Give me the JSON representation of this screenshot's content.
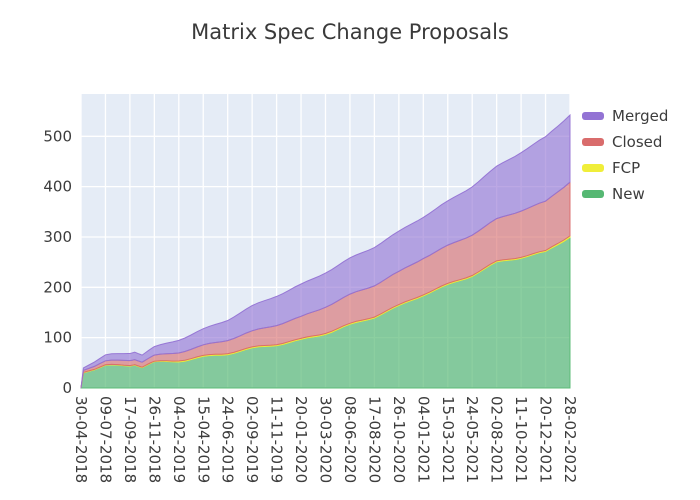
{
  "title": "Matrix Spec Change Proposals",
  "chart_data": {
    "type": "area",
    "stacked": true,
    "title": "Matrix Spec Change Proposals",
    "xlabel": "",
    "ylabel": "",
    "ylim": [
      0,
      584
    ],
    "yticks": [
      0,
      100,
      200,
      300,
      400,
      500
    ],
    "grid": true,
    "plot_bg": "#e5ecf6",
    "grid_color": "#ffffff",
    "legend_position": "right",
    "categories": [
      "30-04-2018",
      "09-07-2018",
      "17-09-2018",
      "26-11-2018",
      "04-02-2019",
      "15-04-2019",
      "24-06-2019",
      "02-09-2019",
      "11-11-2019",
      "20-01-2020",
      "30-03-2020",
      "08-06-2020",
      "17-08-2020",
      "26-10-2020",
      "04-01-2021",
      "15-03-2021",
      "24-05-2021",
      "02-08-2021",
      "11-10-2021",
      "20-12-2021",
      "28-02-2022"
    ],
    "x_positions": [
      0,
      0.1,
      1,
      2,
      2.2,
      2.5,
      3,
      4,
      5,
      6,
      7,
      8,
      9,
      10,
      11,
      12,
      13,
      14,
      15,
      16,
      17,
      18,
      19,
      20
    ],
    "stack_order_bottom_up": [
      "New",
      "FCP",
      "Closed",
      "Merged"
    ],
    "series": [
      {
        "name": "Merged",
        "color": "#9373d4",
        "fill_opacity": 0.62,
        "values": [
          0,
          5,
          12,
          14,
          15,
          14,
          17,
          25,
          32,
          40,
          50,
          58,
          64,
          68,
          72,
          76,
          80,
          82,
          88,
          96,
          104,
          116,
          128,
          133
        ]
      },
      {
        "name": "Closed",
        "color": "#d96c6c",
        "fill_opacity": 0.62,
        "values": [
          0,
          4,
          8,
          10,
          10,
          10,
          12,
          16,
          21,
          26,
          32,
          38,
          44,
          52,
          58,
          62,
          66,
          72,
          76,
          80,
          84,
          92,
          98,
          107
        ]
      },
      {
        "name": "FCP",
        "color": "#f0ee3a",
        "fill_opacity": 0.9,
        "values": [
          0,
          1,
          1,
          1,
          1,
          1,
          1,
          2,
          2,
          2,
          2,
          2,
          2,
          2,
          2,
          2,
          2,
          2,
          2,
          2,
          2,
          2,
          2,
          3
        ]
      },
      {
        "name": "New",
        "color": "#56b873",
        "fill_opacity": 0.68,
        "values": [
          0,
          30,
          42,
          44,
          46,
          40,
          50,
          55,
          62,
          68,
          76,
          85,
          95,
          110,
          125,
          140,
          160,
          185,
          205,
          225,
          248,
          258,
          268,
          302
        ]
      }
    ]
  }
}
